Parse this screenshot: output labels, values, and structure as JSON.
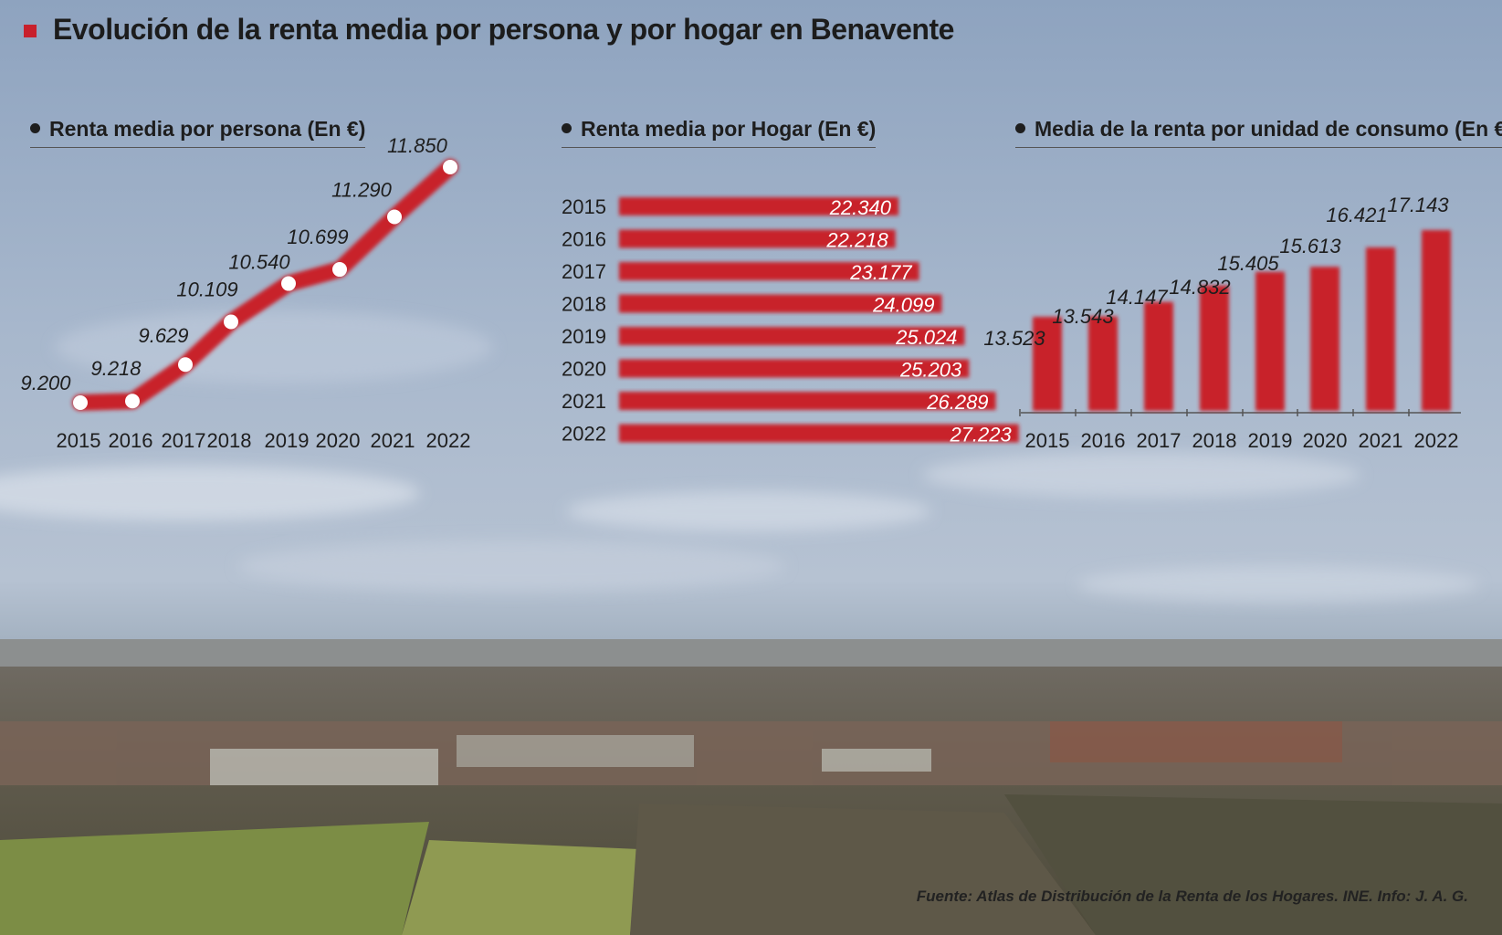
{
  "title": "Evolución de la renta media por persona y por hogar en Benavente",
  "source": "Fuente: Atlas de Distribución de la Renta de los Hogares. INE. Info: J. A. G.",
  "colors": {
    "accent": "#c8202c",
    "text": "#1e1e1e"
  },
  "chart_data": [
    {
      "type": "line",
      "title": "Renta media por persona (En €)",
      "categories": [
        "2015",
        "2016",
        "2017",
        "2018",
        "2019",
        "2020",
        "2021",
        "2022"
      ],
      "values": [
        9200,
        9218,
        9629,
        10109,
        10540,
        10699,
        11290,
        11850
      ],
      "labels": [
        "9.200",
        "9.218",
        "9.629",
        "10.109",
        "10.540",
        "10.699",
        "11.290",
        "11.850"
      ]
    },
    {
      "type": "bar",
      "orientation": "horizontal",
      "title": "Renta media por Hogar (En €)",
      "categories": [
        "2015",
        "2016",
        "2017",
        "2018",
        "2019",
        "2020",
        "2021",
        "2022"
      ],
      "values": [
        22340,
        22218,
        23177,
        24099,
        25024,
        25203,
        26289,
        27223
      ],
      "labels": [
        "22.340",
        "22.218",
        "23.177",
        "24.099",
        "25.024",
        "25.203",
        "26.289",
        "27.223"
      ]
    },
    {
      "type": "bar",
      "title": "Media de la renta por unidad de consumo (En €)",
      "categories": [
        "2015",
        "2016",
        "2017",
        "2018",
        "2019",
        "2020",
        "2021",
        "2022"
      ],
      "values": [
        13523,
        13543,
        14147,
        14832,
        15405,
        15613,
        16421,
        17143
      ],
      "labels": [
        "13.523",
        "13.543",
        "14.147",
        "14.832",
        "15.405",
        "15.613",
        "16.421",
        "17.143"
      ]
    }
  ]
}
